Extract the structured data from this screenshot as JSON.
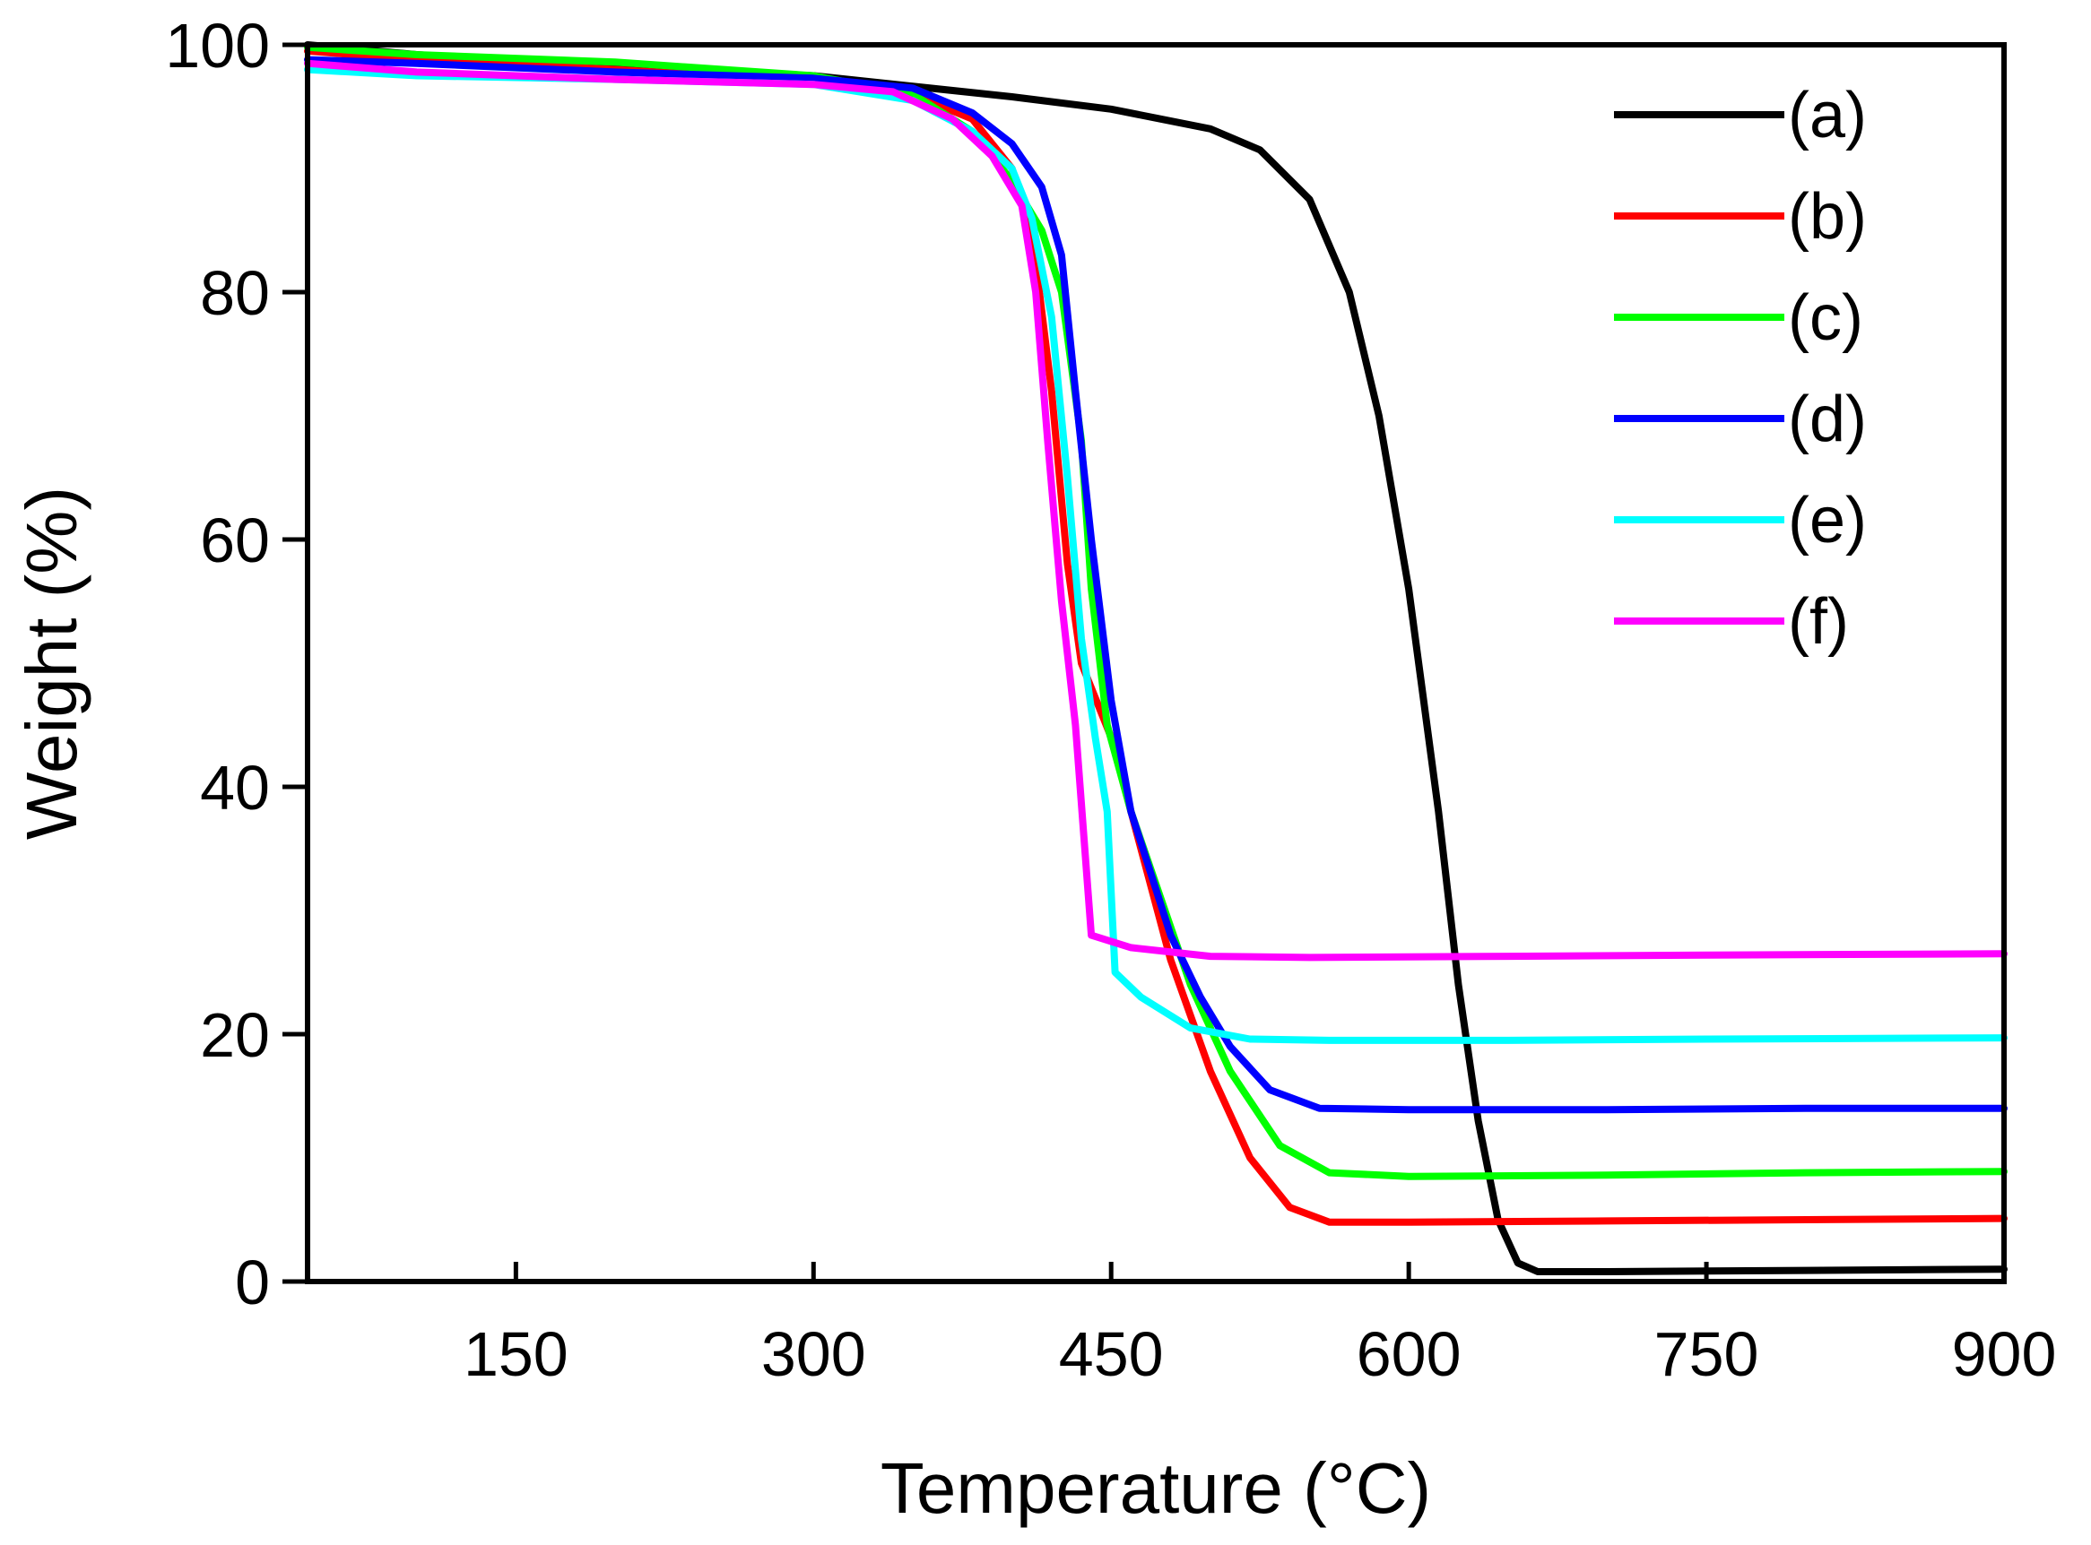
{
  "chart_data": {
    "type": "line",
    "title": "",
    "xlabel": "Temperature (°C)",
    "ylabel": "Weight (%)",
    "xlim": [
      45,
      900
    ],
    "ylim": [
      0,
      100
    ],
    "x_ticks": [
      150,
      300,
      450,
      600,
      750,
      900
    ],
    "x_tick_labels": [
      "150",
      "300",
      "450",
      "600",
      "750",
      "900"
    ],
    "y_ticks": [
      0,
      20,
      40,
      60,
      80,
      100
    ],
    "y_tick_labels": [
      "0",
      "20",
      "40",
      "60",
      "80",
      "100"
    ],
    "grid": false,
    "legend_position": "top-right",
    "series": [
      {
        "name": "(a)",
        "color": "#000000",
        "points": [
          [
            45,
            100
          ],
          [
            100,
            99.2
          ],
          [
            200,
            98.2
          ],
          [
            300,
            97.5
          ],
          [
            400,
            95.8
          ],
          [
            450,
            94.8
          ],
          [
            500,
            93.2
          ],
          [
            525,
            91.5
          ],
          [
            550,
            87.5
          ],
          [
            570,
            80
          ],
          [
            585,
            70
          ],
          [
            600,
            56
          ],
          [
            615,
            38
          ],
          [
            625,
            24
          ],
          [
            635,
            13
          ],
          [
            645,
            5
          ],
          [
            655,
            1.5
          ],
          [
            665,
            0.8
          ],
          [
            700,
            0.8
          ],
          [
            800,
            0.9
          ],
          [
            900,
            1.0
          ]
        ]
      },
      {
        "name": "(b)",
        "color": "#ff0000",
        "points": [
          [
            45,
            99.5
          ],
          [
            100,
            98.8
          ],
          [
            200,
            98
          ],
          [
            300,
            97
          ],
          [
            350,
            96
          ],
          [
            380,
            94
          ],
          [
            400,
            90
          ],
          [
            410,
            85
          ],
          [
            420,
            72
          ],
          [
            428,
            58
          ],
          [
            435,
            50
          ],
          [
            450,
            44
          ],
          [
            465,
            35
          ],
          [
            480,
            26
          ],
          [
            500,
            17
          ],
          [
            520,
            10
          ],
          [
            540,
            6
          ],
          [
            560,
            4.8
          ],
          [
            600,
            4.8
          ],
          [
            700,
            4.9
          ],
          [
            800,
            5.0
          ],
          [
            900,
            5.1
          ]
        ]
      },
      {
        "name": "(c)",
        "color": "#00ff00",
        "points": [
          [
            45,
            99.8
          ],
          [
            100,
            99.2
          ],
          [
            200,
            98.6
          ],
          [
            300,
            97.5
          ],
          [
            350,
            96
          ],
          [
            380,
            93
          ],
          [
            400,
            89
          ],
          [
            415,
            85
          ],
          [
            425,
            80
          ],
          [
            435,
            68
          ],
          [
            440,
            56
          ],
          [
            448,
            45
          ],
          [
            460,
            38
          ],
          [
            475,
            31
          ],
          [
            490,
            24
          ],
          [
            510,
            17
          ],
          [
            535,
            11
          ],
          [
            560,
            8.8
          ],
          [
            600,
            8.5
          ],
          [
            700,
            8.6
          ],
          [
            800,
            8.8
          ],
          [
            900,
            8.9
          ]
        ]
      },
      {
        "name": "(d)",
        "color": "#0000ff",
        "points": [
          [
            45,
            98.8
          ],
          [
            100,
            98.5
          ],
          [
            200,
            97.8
          ],
          [
            300,
            97.3
          ],
          [
            350,
            96.5
          ],
          [
            380,
            94.5
          ],
          [
            400,
            92
          ],
          [
            415,
            88.5
          ],
          [
            425,
            83
          ],
          [
            432,
            72
          ],
          [
            440,
            60
          ],
          [
            450,
            47
          ],
          [
            460,
            38
          ],
          [
            470,
            33
          ],
          [
            480,
            28
          ],
          [
            495,
            23
          ],
          [
            510,
            19
          ],
          [
            530,
            15.5
          ],
          [
            555,
            14
          ],
          [
            600,
            13.9
          ],
          [
            700,
            13.9
          ],
          [
            800,
            14.0
          ],
          [
            900,
            14.0
          ]
        ]
      },
      {
        "name": "(e)",
        "color": "#00ffff",
        "points": [
          [
            45,
            98
          ],
          [
            100,
            97.5
          ],
          [
            200,
            97.2
          ],
          [
            300,
            96.8
          ],
          [
            350,
            95.5
          ],
          [
            380,
            93
          ],
          [
            400,
            90
          ],
          [
            410,
            86
          ],
          [
            420,
            78
          ],
          [
            428,
            65
          ],
          [
            435,
            52
          ],
          [
            442,
            44
          ],
          [
            448,
            38
          ],
          [
            452,
            25
          ],
          [
            465,
            23
          ],
          [
            490,
            20.5
          ],
          [
            520,
            19.6
          ],
          [
            560,
            19.5
          ],
          [
            650,
            19.5
          ],
          [
            750,
            19.6
          ],
          [
            900,
            19.7
          ]
        ]
      },
      {
        "name": "(f)",
        "color": "#ff00ff",
        "points": [
          [
            45,
            98.5
          ],
          [
            100,
            97.8
          ],
          [
            200,
            97.2
          ],
          [
            300,
            96.8
          ],
          [
            340,
            96.2
          ],
          [
            370,
            94
          ],
          [
            390,
            91
          ],
          [
            405,
            87
          ],
          [
            412,
            80
          ],
          [
            418,
            68
          ],
          [
            425,
            55
          ],
          [
            432,
            45
          ],
          [
            440,
            28
          ],
          [
            460,
            27
          ],
          [
            500,
            26.3
          ],
          [
            550,
            26.2
          ],
          [
            650,
            26.3
          ],
          [
            750,
            26.4
          ],
          [
            900,
            26.5
          ]
        ]
      }
    ]
  }
}
